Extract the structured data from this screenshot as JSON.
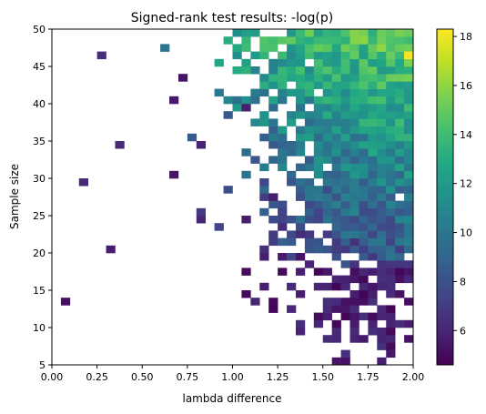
{
  "chart_data": {
    "type": "heatmap",
    "title": "Signed-rank test results: -log(p)",
    "xlabel": "lambda difference",
    "ylabel": "Sample size",
    "xlim": [
      0.0,
      2.0
    ],
    "ylim": [
      5,
      50
    ],
    "xticks": [
      "0.00",
      "0.25",
      "0.50",
      "0.75",
      "1.00",
      "1.25",
      "1.50",
      "1.75",
      "2.00"
    ],
    "yticks": [
      "5",
      "10",
      "15",
      "20",
      "25",
      "30",
      "35",
      "40",
      "45",
      "50"
    ],
    "colorbar": {
      "colormap": "viridis",
      "range": [
        4.6,
        18.3
      ],
      "ticks": [
        "6",
        "8",
        "10",
        "12",
        "14",
        "16",
        "18"
      ]
    },
    "grid": false,
    "note_on_cells": "2D histogram of -log(p) over lambda difference (40 bins of 0.05) by sample size (45 bins of 1). Each cell: [lambda bin start, sample size bin start, value]. Blank cells have no data.",
    "cells": []
  }
}
